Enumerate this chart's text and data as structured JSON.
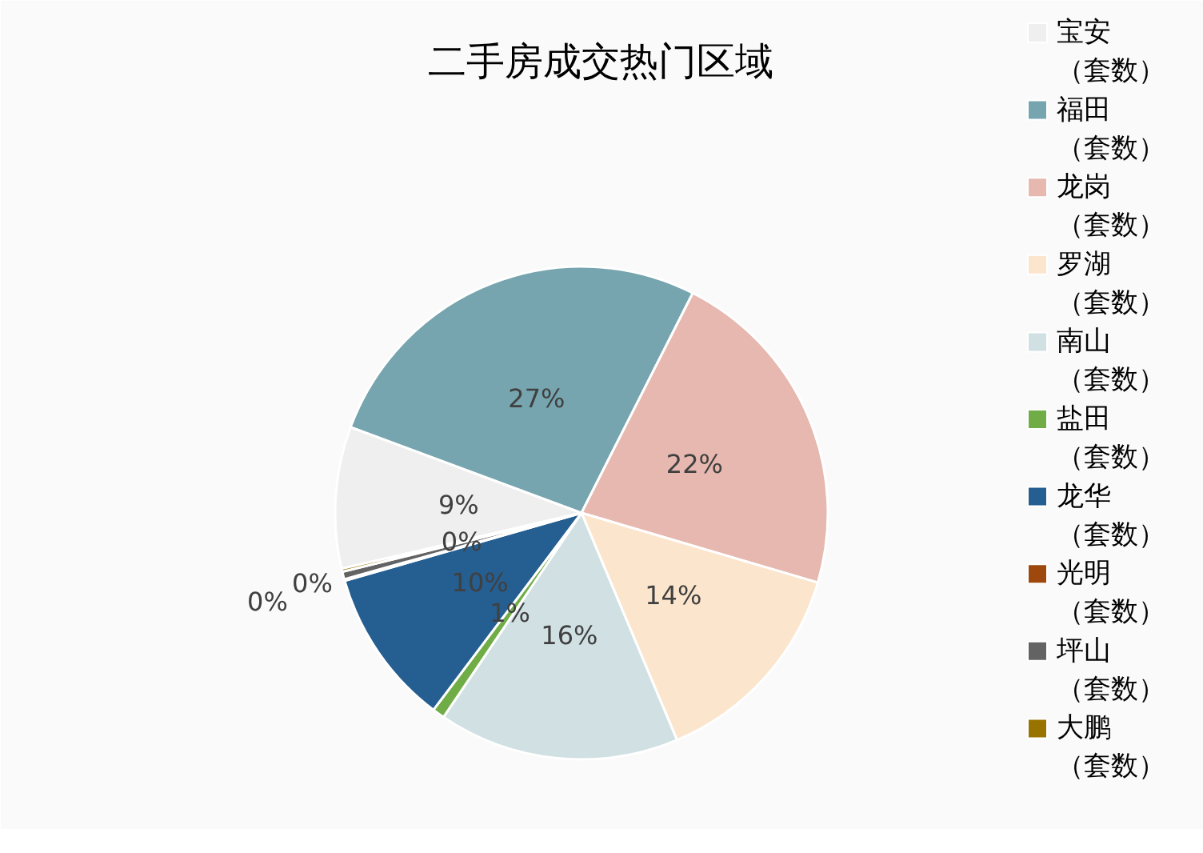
{
  "chart_data": {
    "type": "pie",
    "title": "二手房成交热门区域",
    "categories": [
      "宝安（套数）",
      "福田（套数）",
      "龙岗（套数）",
      "罗湖（套数）",
      "南山（套数）",
      "盐田（套数）",
      "龙华（套数）",
      "光明（套数）",
      "坪山（套数）",
      "大鹏（套数）"
    ],
    "values": [
      9.3,
      26.8,
      22.1,
      14.1,
      15.8,
      0.8,
      10.3,
      0.1,
      0.5,
      0.2
    ],
    "colors": [
      "#efefef",
      "#76a5af",
      "#e6b8af",
      "#fce5cd",
      "#d0e0e3",
      "#70ad47",
      "#255e91",
      "#9e480e",
      "#636363",
      "#997300"
    ],
    "value_labels": [
      "9%",
      "27%",
      "22%",
      "14%",
      "16%",
      "1%",
      "10%",
      "0%",
      "0%",
      "0%"
    ],
    "legend": "right"
  }
}
